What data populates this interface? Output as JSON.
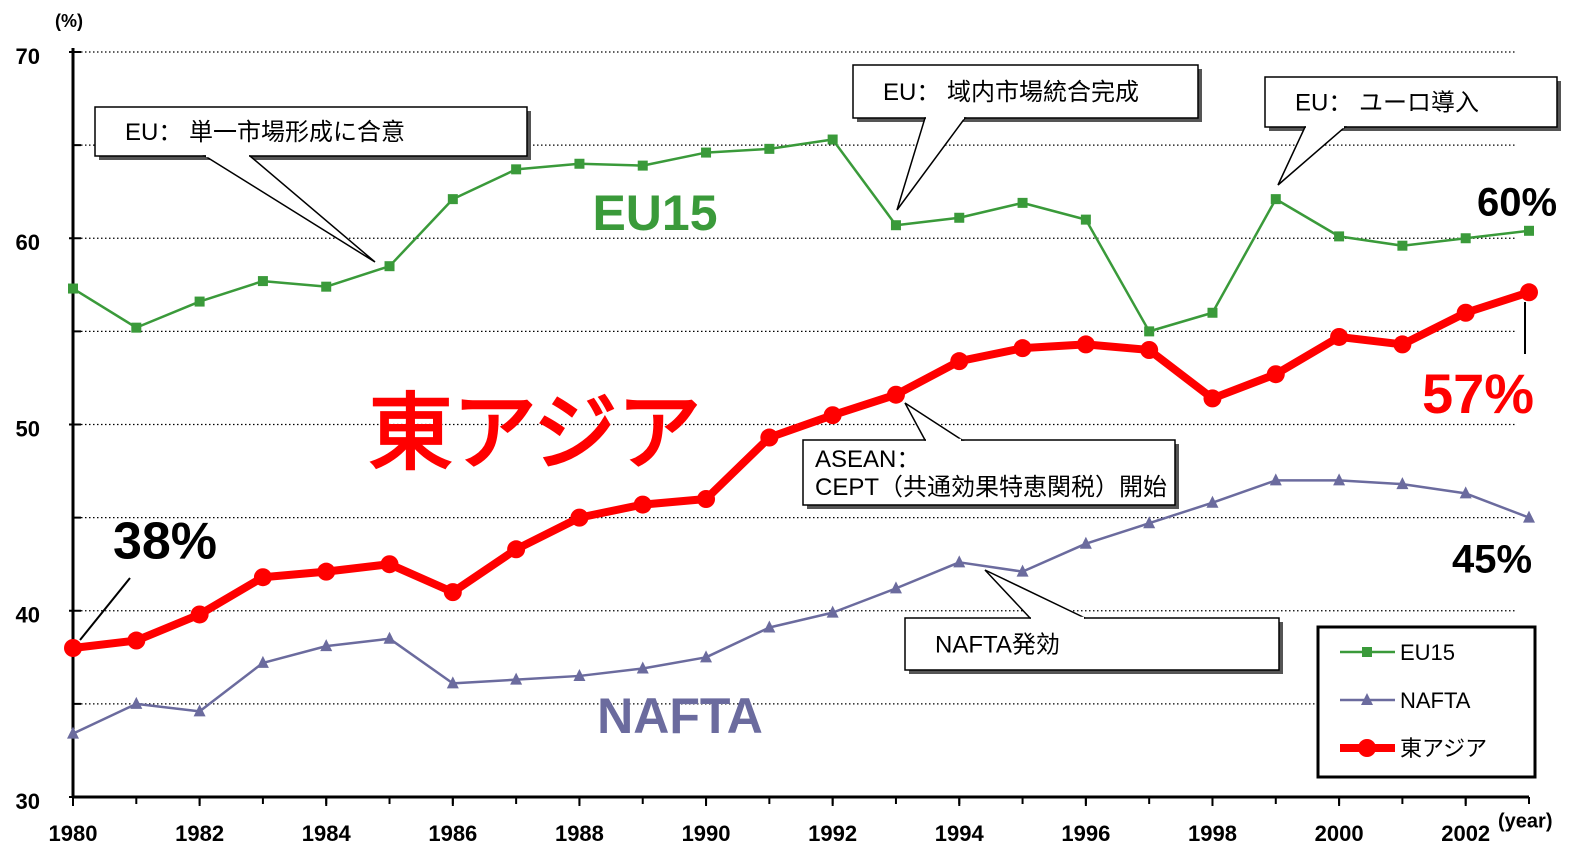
{
  "chart_data": {
    "type": "line",
    "y_axis_label": "(%)",
    "x_axis_label": "(year)",
    "x": [
      1980,
      1981,
      1982,
      1983,
      1984,
      1985,
      1986,
      1987,
      1988,
      1989,
      1990,
      1991,
      1992,
      1993,
      1994,
      1995,
      1996,
      1997,
      1998,
      1999,
      2000,
      2001,
      2002,
      2003
    ],
    "xlim": [
      1980,
      2003
    ],
    "xticks": [
      1980,
      1982,
      1984,
      1986,
      1988,
      1990,
      1992,
      1994,
      1996,
      1998,
      2000,
      2002
    ],
    "ylim": [
      30,
      70
    ],
    "yticks": [
      30,
      40,
      50,
      60,
      70
    ],
    "grid": true,
    "legend": "lower right",
    "series": [
      {
        "name": "EU15",
        "color": "#3a9a3a",
        "marker": "square",
        "values": [
          57.3,
          55.2,
          56.6,
          57.7,
          57.4,
          58.5,
          62.1,
          63.7,
          64.0,
          63.9,
          64.6,
          64.8,
          65.3,
          60.7,
          61.1,
          61.9,
          61.0,
          55.0,
          56.0,
          62.1,
          60.1,
          59.6,
          60.0,
          60.4
        ],
        "value_labels": [
          null,
          null,
          null,
          null,
          null,
          null,
          null,
          null,
          null,
          null,
          null,
          null,
          null,
          null,
          null,
          null,
          null,
          null,
          null,
          null,
          null,
          null,
          null,
          "60%"
        ]
      },
      {
        "name": "NAFTA",
        "color": "#6b6b9e",
        "marker": "triangle",
        "values": [
          33.4,
          35.0,
          34.6,
          37.2,
          38.1,
          38.5,
          36.1,
          36.3,
          36.5,
          36.9,
          37.5,
          39.1,
          39.9,
          41.2,
          42.6,
          42.1,
          43.6,
          44.7,
          45.8,
          47.0,
          47.0,
          46.8,
          46.3,
          45.0
        ],
        "value_labels": [
          null,
          null,
          null,
          null,
          null,
          null,
          null,
          null,
          null,
          null,
          null,
          null,
          null,
          null,
          null,
          null,
          null,
          null,
          null,
          null,
          null,
          null,
          null,
          "45%"
        ]
      },
      {
        "name": "東アジア",
        "color": "#ff0000",
        "marker": "circle",
        "values": [
          38.0,
          38.4,
          39.8,
          41.8,
          42.1,
          42.5,
          41.0,
          43.3,
          45.0,
          45.7,
          46.0,
          49.3,
          50.5,
          51.6,
          53.4,
          54.1,
          54.3,
          54.0,
          51.4,
          52.7,
          54.7,
          54.3,
          56.0,
          57.1
        ],
        "value_labels": [
          "38%",
          null,
          null,
          null,
          null,
          null,
          null,
          null,
          null,
          null,
          null,
          null,
          null,
          null,
          null,
          null,
          null,
          null,
          null,
          null,
          null,
          null,
          null,
          "57%"
        ]
      }
    ],
    "annotations": [
      {
        "lines": [
          "EU： 単一市場形成に合意"
        ]
      },
      {
        "lines": [
          "EU： 域内市場統合完成"
        ]
      },
      {
        "lines": [
          "EU： ユーロ導入"
        ]
      },
      {
        "lines": [
          "ASEAN：",
          "CEPT（共通効果特恵関税）開始"
        ]
      },
      {
        "lines": [
          "NAFTA発効"
        ]
      }
    ]
  }
}
